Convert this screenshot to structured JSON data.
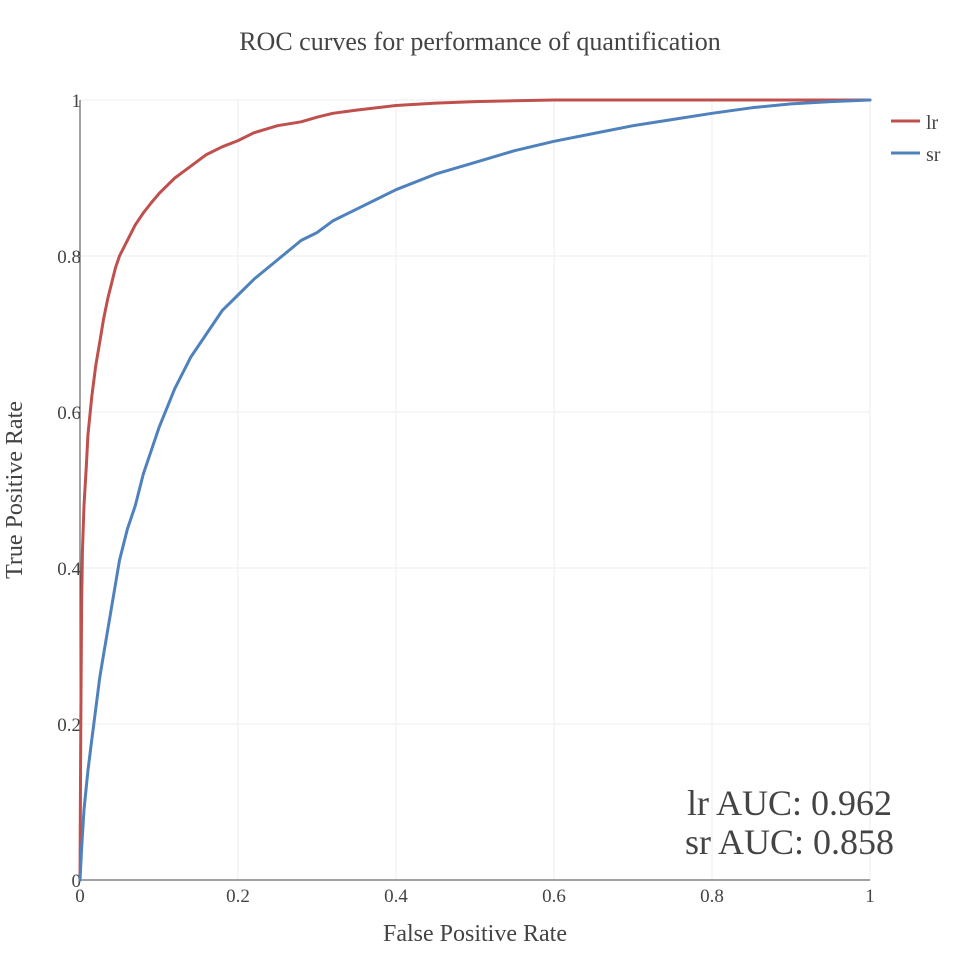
{
  "chart_data": {
    "type": "line",
    "title": "ROC curves for performance of quantification",
    "xlabel": "False Positive Rate",
    "ylabel": "True Positive Rate",
    "xlim": [
      0,
      1
    ],
    "ylim": [
      0,
      1
    ],
    "x_ticks": [
      "0",
      "0.2",
      "0.4",
      "0.6",
      "0.8",
      "1"
    ],
    "y_ticks": [
      "0",
      "0.2",
      "0.4",
      "0.6",
      "0.8",
      "1"
    ],
    "grid": true,
    "legend_position": "top-right",
    "annotation_lines": [
      "lr AUC: 0.962",
      "sr AUC: 0.858"
    ],
    "series": [
      {
        "name": "lr",
        "color": "#c0504d",
        "x": [
          0,
          0.001,
          0.002,
          0.003,
          0.005,
          0.008,
          0.01,
          0.015,
          0.02,
          0.025,
          0.03,
          0.035,
          0.04,
          0.045,
          0.05,
          0.06,
          0.07,
          0.08,
          0.09,
          0.1,
          0.12,
          0.14,
          0.16,
          0.18,
          0.2,
          0.22,
          0.25,
          0.28,
          0.3,
          0.32,
          0.35,
          0.4,
          0.45,
          0.5,
          0.55,
          0.6,
          0.7,
          0.8,
          0.9,
          1.0
        ],
        "y": [
          0,
          0.2,
          0.35,
          0.42,
          0.48,
          0.53,
          0.57,
          0.62,
          0.66,
          0.69,
          0.72,
          0.745,
          0.765,
          0.785,
          0.8,
          0.82,
          0.84,
          0.855,
          0.868,
          0.88,
          0.9,
          0.915,
          0.93,
          0.94,
          0.948,
          0.958,
          0.967,
          0.972,
          0.978,
          0.983,
          0.987,
          0.993,
          0.996,
          0.998,
          0.999,
          1.0,
          1.0,
          1.0,
          1.0,
          1.0
        ]
      },
      {
        "name": "sr",
        "color": "#4f81bd",
        "x": [
          0,
          0.002,
          0.005,
          0.01,
          0.015,
          0.02,
          0.025,
          0.03,
          0.04,
          0.05,
          0.06,
          0.07,
          0.08,
          0.09,
          0.1,
          0.12,
          0.14,
          0.16,
          0.18,
          0.2,
          0.22,
          0.25,
          0.28,
          0.3,
          0.32,
          0.35,
          0.38,
          0.4,
          0.45,
          0.5,
          0.55,
          0.6,
          0.65,
          0.7,
          0.75,
          0.8,
          0.85,
          0.9,
          0.95,
          1.0
        ],
        "y": [
          0,
          0.04,
          0.09,
          0.14,
          0.18,
          0.22,
          0.26,
          0.29,
          0.35,
          0.41,
          0.45,
          0.48,
          0.52,
          0.55,
          0.58,
          0.63,
          0.67,
          0.7,
          0.73,
          0.75,
          0.77,
          0.795,
          0.82,
          0.83,
          0.845,
          0.86,
          0.875,
          0.885,
          0.905,
          0.92,
          0.935,
          0.947,
          0.957,
          0.967,
          0.975,
          0.983,
          0.99,
          0.995,
          0.998,
          1.0
        ]
      }
    ]
  }
}
